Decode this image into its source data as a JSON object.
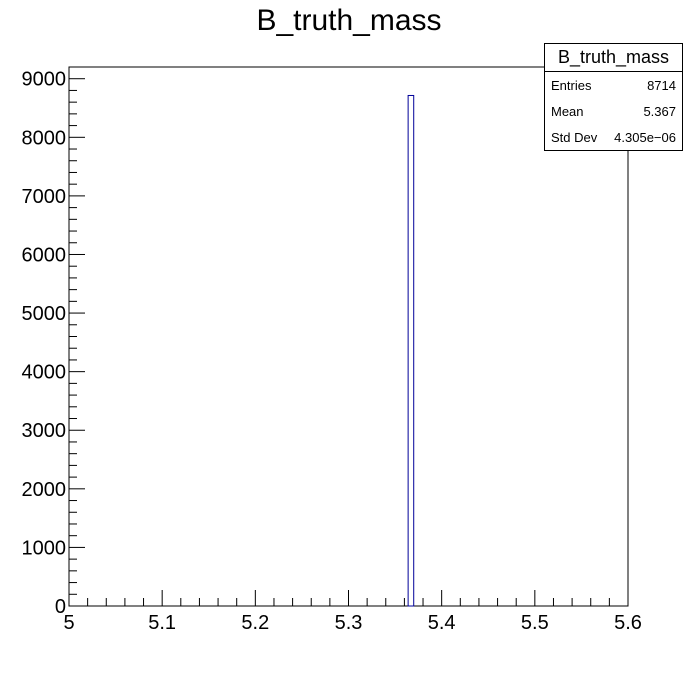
{
  "title": "B_truth_mass",
  "stats_box": {
    "title": "B_truth_mass",
    "rows": [
      {
        "label": "Entries",
        "value": "8714"
      },
      {
        "label": "Mean",
        "value": "5.367"
      },
      {
        "label": "Std Dev",
        "value": "4.305e−06"
      }
    ]
  },
  "chart_data": {
    "type": "bar",
    "title": "B_truth_mass",
    "xlabel": "",
    "ylabel": "",
    "xlim": [
      5.0,
      5.6
    ],
    "ylim": [
      0,
      9200
    ],
    "x_ticks": [
      "5",
      "5.1",
      "5.2",
      "5.3",
      "5.4",
      "5.5",
      "5.6"
    ],
    "y_ticks": [
      "0",
      "1000",
      "2000",
      "3000",
      "4000",
      "5000",
      "6000",
      "7000",
      "8000",
      "9000"
    ],
    "bins": [
      {
        "x_low": 5.364,
        "x_high": 5.37,
        "value": 8714
      }
    ],
    "line_color": "#000099",
    "grid": false,
    "legend": "none"
  }
}
